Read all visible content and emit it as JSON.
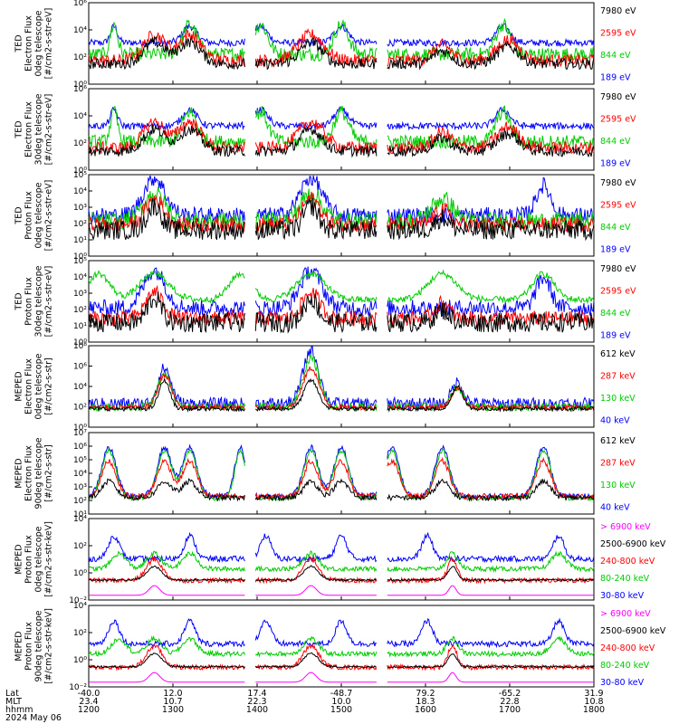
{
  "chart_data": [
    {
      "type": "line",
      "ylabel": "TED Electron Flux 0deg telescope [#/cm2-s-str-eV]",
      "yticks": [
        "10⁶",
        "10⁴",
        "10²",
        "10⁰"
      ],
      "scale": "log",
      "ylim_exp": [
        0,
        6
      ],
      "series": [
        {
          "name": "7980 eV",
          "color": "#000000",
          "pattern": "black_e",
          "base": 1.1
        },
        {
          "name": "2595 eV",
          "color": "#ff0000",
          "pattern": "red_e",
          "base": 1.3
        },
        {
          "name": "844 eV",
          "color": "#00cc00",
          "pattern": "green_e",
          "base": 1.7
        },
        {
          "name": "189 eV",
          "color": "#0000ff",
          "pattern": "blue_e",
          "base": 2.8
        }
      ]
    },
    {
      "type": "line",
      "ylabel": "TED Electron Flux 30deg telescope [#/cm2-s-str-eV]",
      "yticks": [
        "10⁶",
        "10⁴",
        "10²",
        "10⁰"
      ],
      "scale": "log",
      "ylim_exp": [
        0,
        6
      ],
      "series": [
        {
          "name": "7980 eV",
          "color": "#000000",
          "pattern": "black_e",
          "base": 1.0
        },
        {
          "name": "2595 eV",
          "color": "#ff0000",
          "pattern": "red_e",
          "base": 1.2
        },
        {
          "name": "844 eV",
          "color": "#00cc00",
          "pattern": "green_e",
          "base": 1.6
        },
        {
          "name": "189 eV",
          "color": "#0000ff",
          "pattern": "blue_e",
          "base": 3.0
        }
      ]
    },
    {
      "type": "line",
      "ylabel": "TED Proton Flux 0deg telescope [#/cm2-s-str-eV]",
      "yticks": [
        "10⁵",
        "10⁴",
        "10³",
        "10²",
        "10¹",
        "10⁰"
      ],
      "scale": "log",
      "ylim_exp": [
        0,
        5
      ],
      "series": [
        {
          "name": "7980 eV",
          "color": "#000000",
          "pattern": "black_p",
          "base": 1.0
        },
        {
          "name": "2595 eV",
          "color": "#ff0000",
          "pattern": "red_p",
          "base": 1.5
        },
        {
          "name": "844 eV",
          "color": "#00cc00",
          "pattern": "green_p",
          "base": 1.6
        },
        {
          "name": "189 eV",
          "color": "#0000ff",
          "pattern": "blue_p",
          "base": 2.0
        }
      ]
    },
    {
      "type": "line",
      "ylabel": "TED Proton Flux 30deg telescope [#/cm2-s-str-eV]",
      "yticks": [
        "10⁵",
        "10⁴",
        "10³",
        "10²",
        "10¹",
        "10⁰"
      ],
      "scale": "log",
      "ylim_exp": [
        0,
        5
      ],
      "series": [
        {
          "name": "7980 eV",
          "color": "#000000",
          "pattern": "black_p",
          "base": 0.6
        },
        {
          "name": "2595 eV",
          "color": "#ff0000",
          "pattern": "red_p",
          "base": 1.0
        },
        {
          "name": "844 eV",
          "color": "#00cc00",
          "pattern": "green_p2",
          "base": 2.4
        },
        {
          "name": "189 eV",
          "color": "#0000ff",
          "pattern": "blue_p",
          "base": 1.6
        }
      ]
    },
    {
      "type": "line",
      "ylabel": "MEPED Electron Flux 0deg telescope [#/cm2-s-str]",
      "yticks": [
        "10⁸",
        "10⁶",
        "10⁴",
        "10²",
        "10⁰"
      ],
      "scale": "log",
      "ylim_exp": [
        0,
        8
      ],
      "series": [
        {
          "name": "612 keV",
          "color": "#000000",
          "pattern": "black_m",
          "base": 1.6
        },
        {
          "name": "287 keV",
          "color": "#ff0000",
          "pattern": "red_m",
          "base": 1.7
        },
        {
          "name": "130 keV",
          "color": "#00cc00",
          "pattern": "green_m",
          "base": 1.6
        },
        {
          "name": "40 keV",
          "color": "#0000ff",
          "pattern": "blue_m",
          "base": 1.7
        }
      ]
    },
    {
      "type": "line",
      "ylabel": "MEPED Electron Flux 90deg telescope [#/cm2-s-str]",
      "yticks": [
        "10⁷",
        "10⁶",
        "10⁵",
        "10⁴",
        "10³",
        "10²",
        "10¹"
      ],
      "scale": "log",
      "ylim_exp": [
        1,
        7
      ],
      "series": [
        {
          "name": "612 keV",
          "color": "#000000",
          "pattern": "black_m90",
          "base": 2.0
        },
        {
          "name": "287 keV",
          "color": "#ff0000",
          "pattern": "red_m90",
          "base": 2.1
        },
        {
          "name": "130 keV",
          "color": "#00cc00",
          "pattern": "green_m90",
          "base": 2.0
        },
        {
          "name": "40 keV",
          "color": "#0000ff",
          "pattern": "blue_m90",
          "base": 2.1
        }
      ]
    },
    {
      "type": "line",
      "ylabel": "MEPED Proton Flux 0deg telescope [#/cm2-s-str-keV]",
      "yticks": [
        "10⁴",
        "10²",
        "10⁰",
        "10⁻²"
      ],
      "scale": "log",
      "ylim_exp": [
        -3,
        5.5
      ],
      "series": [
        {
          "name": "> 6900 keV",
          "color": "#ff00ff",
          "pattern": "mag_pp",
          "base": -2.5
        },
        {
          "name": "2500-6900 keV",
          "color": "#000000",
          "pattern": "black_pp",
          "base": -1.0
        },
        {
          "name": "240-800 keV",
          "color": "#ff0000",
          "pattern": "red_pp",
          "base": -1.2
        },
        {
          "name": "80-240 keV",
          "color": "#00cc00",
          "pattern": "green_pp",
          "base": 0.0
        },
        {
          "name": "30-80 keV",
          "color": "#0000ff",
          "pattern": "blue_pp",
          "base": 1.0
        }
      ]
    },
    {
      "type": "line",
      "ylabel": "MEPED Proton Flux 90deg telescope [#/cm2-s-str-keV]",
      "yticks": [
        "10⁴",
        "10²",
        "10⁰",
        "10⁻²"
      ],
      "scale": "log",
      "ylim_exp": [
        -3,
        5.5
      ],
      "series": [
        {
          "name": "> 6900 keV",
          "color": "#ff00ff",
          "pattern": "mag_pp",
          "base": -2.5
        },
        {
          "name": "2500-6900 keV",
          "color": "#000000",
          "pattern": "black_pp",
          "base": -1.0
        },
        {
          "name": "240-800 keV",
          "color": "#ff0000",
          "pattern": "red_pp",
          "base": -1.2
        },
        {
          "name": "80-240 keV",
          "color": "#00cc00",
          "pattern": "green_pp",
          "base": 0.2
        },
        {
          "name": "30-80 keV",
          "color": "#0000ff",
          "pattern": "blue_pp",
          "base": 1.2
        }
      ]
    }
  ],
  "x_axis": {
    "row_labels": [
      "Lat",
      "MLT",
      "hhmm",
      "2024 May 06"
    ],
    "ticks": [
      {
        "lat": "-40.0",
        "mlt": "23.4",
        "hhmm": "1200"
      },
      {
        "lat": "12.0",
        "mlt": "10.7",
        "hhmm": "1300"
      },
      {
        "lat": "17.4",
        "mlt": "22.3",
        "hhmm": "1400"
      },
      {
        "lat": "-48.7",
        "mlt": "10.0",
        "hhmm": "1500"
      },
      {
        "lat": "79.2",
        "mlt": "18.3",
        "hhmm": "1600"
      },
      {
        "lat": "-65.2",
        "mlt": "22.8",
        "hhmm": "1700"
      },
      {
        "lat": "31.9",
        "mlt": "10.8",
        "hhmm": "1800"
      }
    ],
    "range": [
      1200,
      1800
    ]
  }
}
